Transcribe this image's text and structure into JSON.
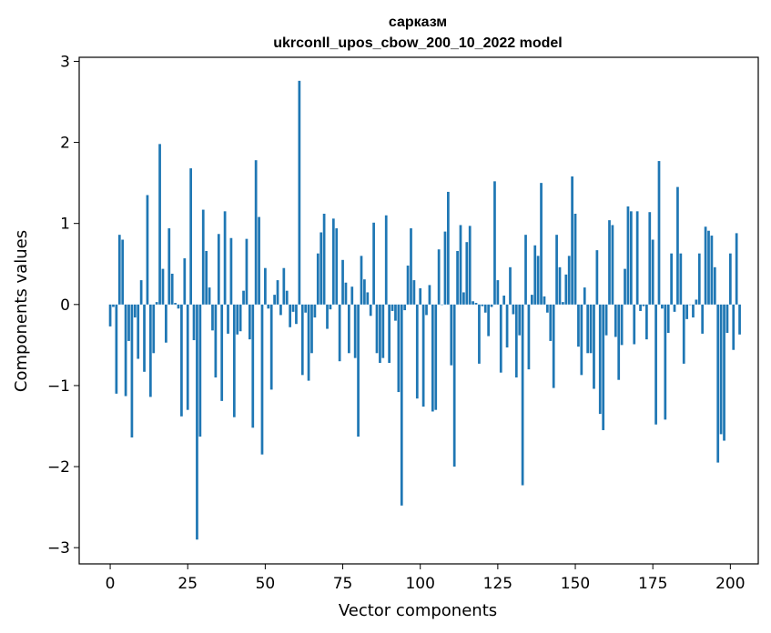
{
  "chart_data": {
    "type": "bar",
    "title_line1": "сарказм",
    "title_line2": "ukrconll_upos_cbow_200_10_2022 model",
    "xlabel": "Vector components",
    "ylabel": "Components values",
    "xlim": [
      -10,
      209
    ],
    "ylim": [
      -3.2,
      3.05
    ],
    "xticks": [
      0,
      25,
      50,
      75,
      100,
      125,
      150,
      175,
      200
    ],
    "yticks": [
      -3,
      -2,
      -1,
      0,
      1,
      2,
      3
    ],
    "ytick_labels": [
      "−3",
      "−2",
      "−1",
      "0",
      "1",
      "2",
      "3"
    ],
    "bar_color": "#1f77b4",
    "grid": false,
    "legend": "none",
    "values": [
      -0.27,
      -0.03,
      -1.1,
      0.86,
      0.8,
      -1.13,
      -0.45,
      -1.64,
      -0.16,
      -0.67,
      0.3,
      -0.83,
      1.35,
      -1.14,
      -0.6,
      0.03,
      1.98,
      0.44,
      -0.47,
      0.94,
      0.38,
      0.02,
      -0.05,
      -1.38,
      0.57,
      -1.3,
      1.68,
      -0.44,
      -2.9,
      -1.63,
      1.17,
      0.66,
      0.21,
      -0.32,
      -0.9,
      0.87,
      -1.19,
      1.15,
      -0.36,
      0.82,
      -1.39,
      -0.37,
      -0.33,
      0.17,
      0.81,
      -0.43,
      -1.52,
      1.78,
      1.08,
      -1.85,
      0.45,
      -0.05,
      -1.05,
      0.12,
      0.3,
      -0.13,
      0.45,
      0.17,
      -0.28,
      -0.09,
      -0.24,
      2.76,
      -0.87,
      -0.1,
      -0.94,
      -0.6,
      -0.16,
      0.63,
      0.89,
      1.12,
      -0.3,
      -0.06,
      1.06,
      0.94,
      -0.7,
      0.55,
      0.27,
      -0.6,
      0.22,
      -0.66,
      -1.63,
      0.6,
      0.31,
      0.15,
      -0.14,
      1.01,
      -0.6,
      -0.72,
      -0.66,
      1.1,
      -0.72,
      -0.08,
      -0.2,
      -1.08,
      -2.48,
      -0.07,
      0.48,
      0.94,
      0.3,
      -1.16,
      0.2,
      -1.26,
      -0.13,
      0.24,
      -1.32,
      -1.3,
      0.68,
      0.0,
      0.9,
      1.39,
      -0.75,
      -2.0,
      0.66,
      0.98,
      0.15,
      0.77,
      0.97,
      0.04,
      0.02,
      -0.73,
      -0.02,
      -0.1,
      -0.39,
      -0.03,
      1.52,
      0.3,
      -0.84,
      0.11,
      -0.53,
      0.46,
      -0.12,
      -0.9,
      -0.38,
      -2.23,
      0.86,
      -0.8,
      0.12,
      0.73,
      0.6,
      1.5,
      0.1,
      -0.1,
      -0.45,
      -1.03,
      0.86,
      0.46,
      0.03,
      0.37,
      0.6,
      1.58,
      1.12,
      -0.52,
      -0.87,
      0.21,
      -0.6,
      -0.6,
      -1.04,
      0.67,
      -1.35,
      -1.55,
      -0.38,
      1.04,
      0.98,
      -0.4,
      -0.93,
      -0.5,
      0.44,
      1.21,
      1.15,
      -0.49,
      1.15,
      -0.08,
      -0.02,
      -0.43,
      1.14,
      0.8,
      -1.48,
      1.77,
      -0.05,
      -1.42,
      -0.35,
      0.63,
      -0.09,
      1.45,
      0.63,
      -0.73,
      -0.18,
      0.0,
      -0.16,
      0.06,
      0.63,
      -0.36,
      0.96,
      0.91,
      0.85,
      0.46,
      -1.95,
      -1.6,
      -1.68,
      -0.35,
      0.63,
      -0.56,
      0.88,
      -0.37
    ]
  }
}
